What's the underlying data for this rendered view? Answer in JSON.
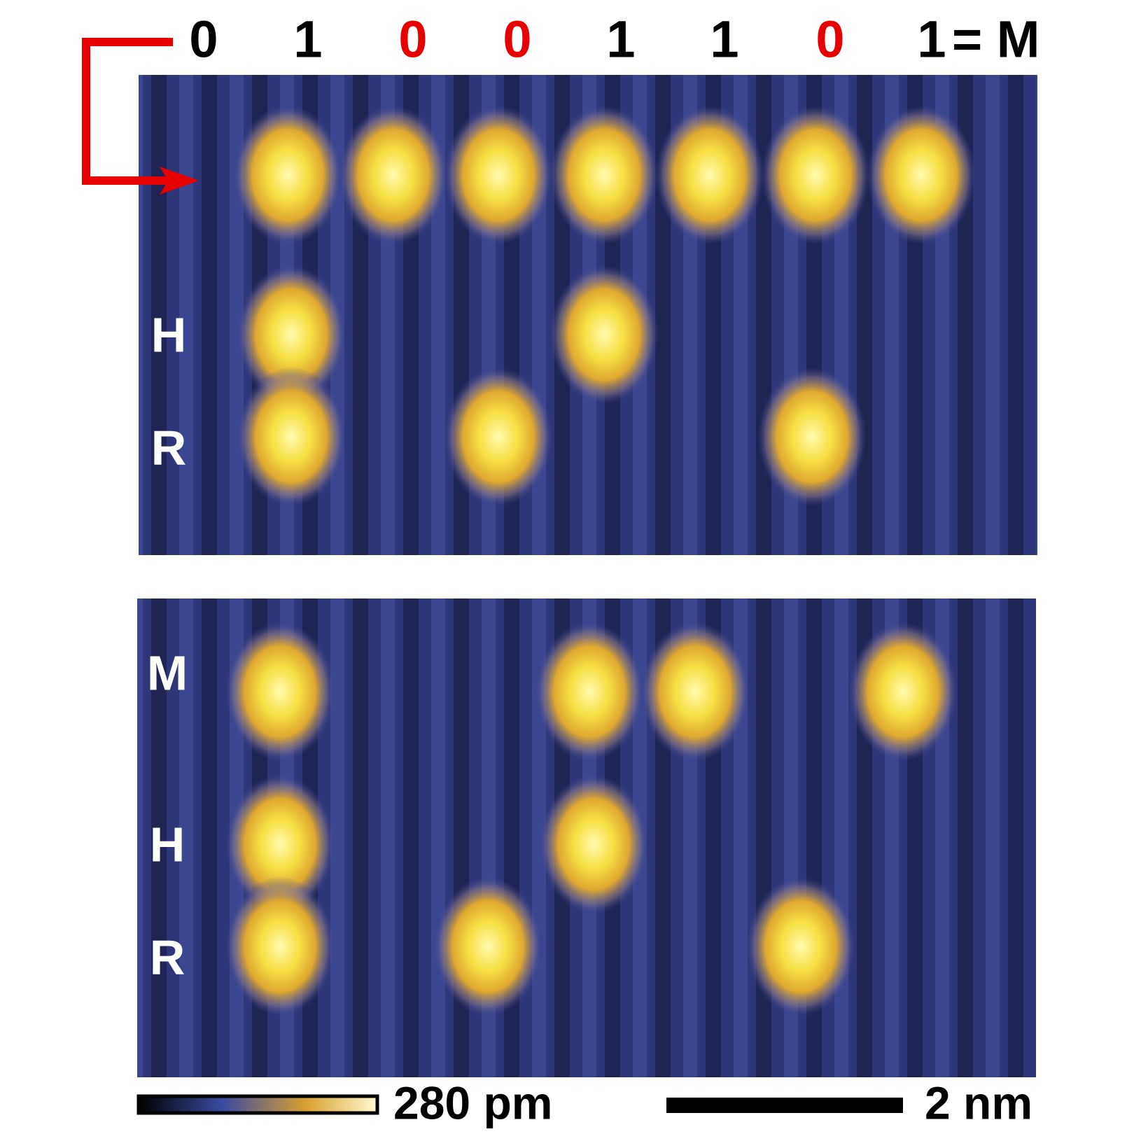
{
  "header": {
    "bits": [
      {
        "text": "0",
        "color": "#000000"
      },
      {
        "text": "1",
        "color": "#000000"
      },
      {
        "text": "0",
        "color": "#e60000"
      },
      {
        "text": "0",
        "color": "#e60000"
      },
      {
        "text": "1",
        "color": "#000000"
      },
      {
        "text": "1",
        "color": "#000000"
      },
      {
        "text": "0",
        "color": "#e60000"
      },
      {
        "text": "1",
        "color": "#000000"
      }
    ],
    "result": "= M"
  },
  "top_panel": {
    "row_labels": [
      "H",
      "R"
    ]
  },
  "bottom_panel": {
    "row_labels": [
      "M",
      "H",
      "R"
    ]
  },
  "scale": {
    "colorbar_label": "280 pm",
    "length_label": "2 nm"
  }
}
